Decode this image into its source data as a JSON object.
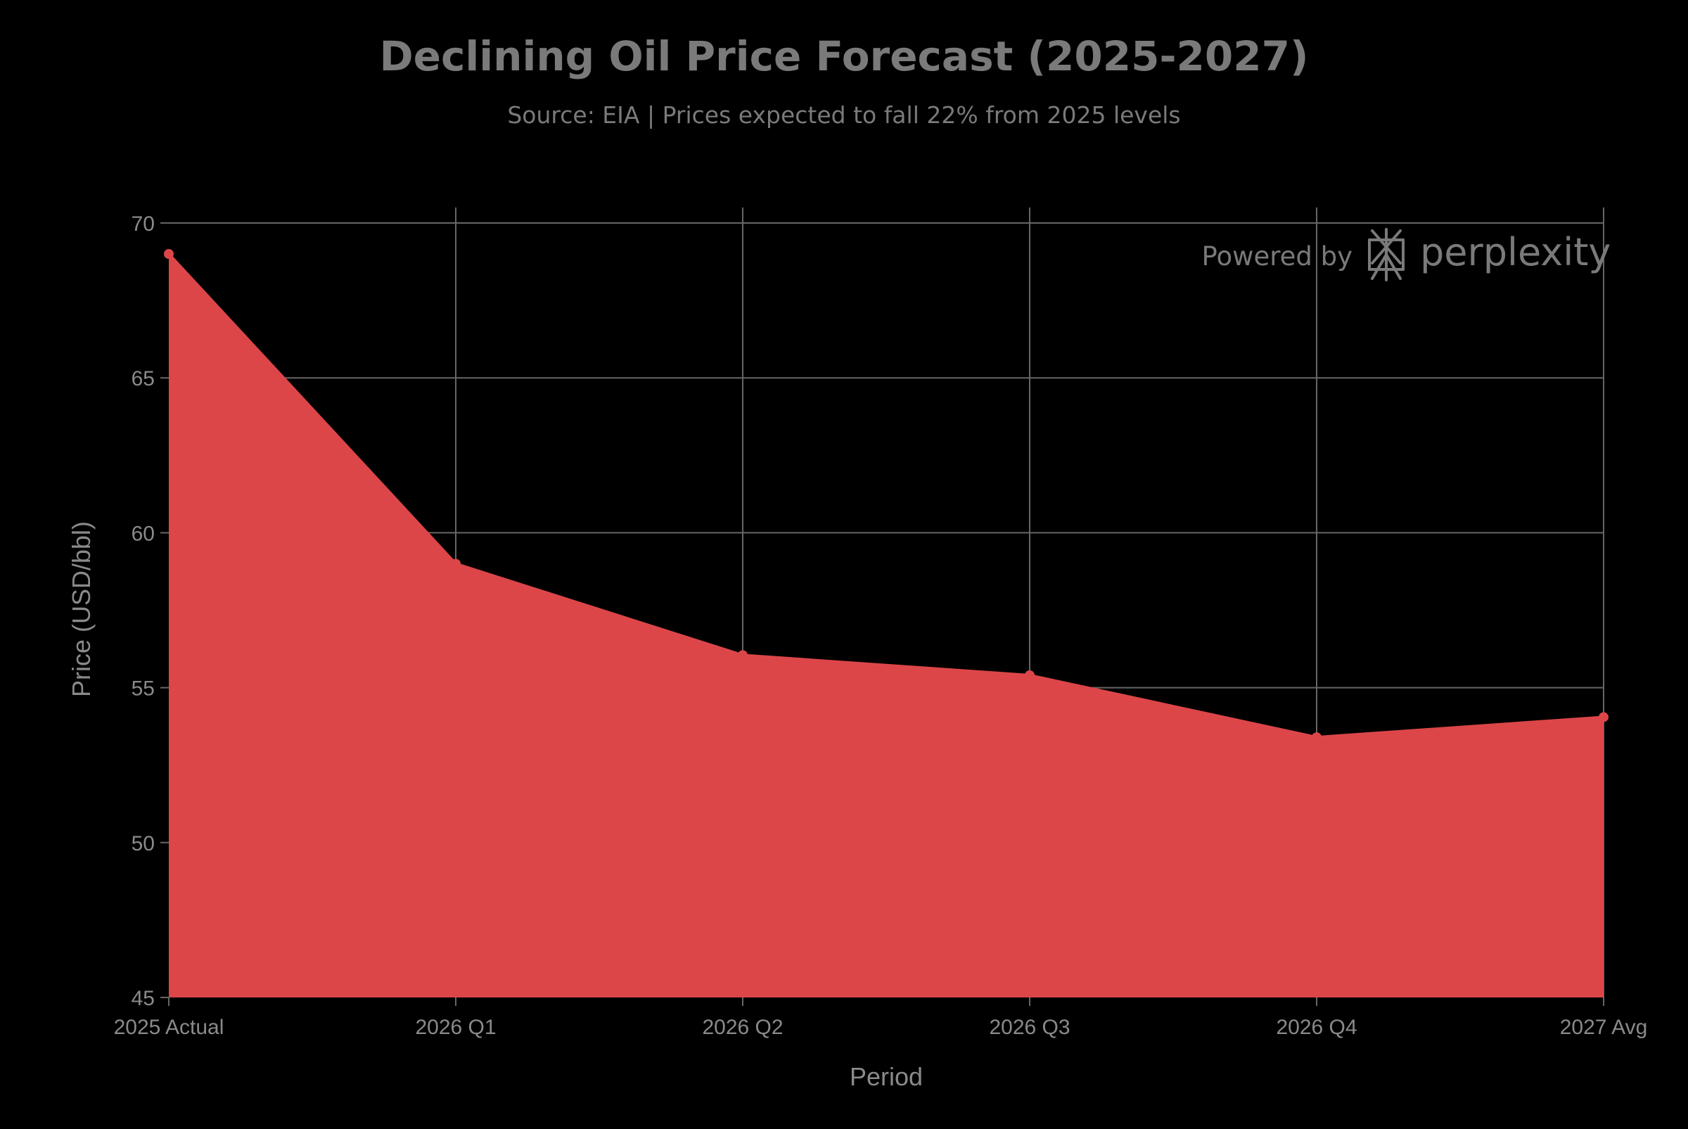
{
  "chart_data": {
    "type": "area",
    "title": "Declining Oil Price Forecast (2025-2027)",
    "subtitle": "Source: EIA | Prices expected to fall 22% from 2025 levels",
    "xlabel": "Period",
    "ylabel": "Price (USD/bbl)",
    "categories": [
      "2025 Actual",
      "2026 Q1",
      "2026 Q2",
      "2026 Q3",
      "2026 Q4",
      "2027 Avg"
    ],
    "values": [
      69,
      59,
      56.05,
      55.4,
      53.4,
      54.05
    ],
    "ylim": [
      45,
      70.5
    ],
    "yticks": [
      45,
      50,
      55,
      60,
      65,
      70
    ],
    "grid": true,
    "legend": "none"
  },
  "colors": {
    "background": "#000000",
    "fill": "#dc4649",
    "line": "#dc4649",
    "marker": "#dc4649",
    "grid": "#666666",
    "text": "#7a7a7a"
  },
  "watermark": {
    "prefix": "Powered by",
    "brand": "perplexity",
    "icon": "perplexity-logo-icon"
  }
}
